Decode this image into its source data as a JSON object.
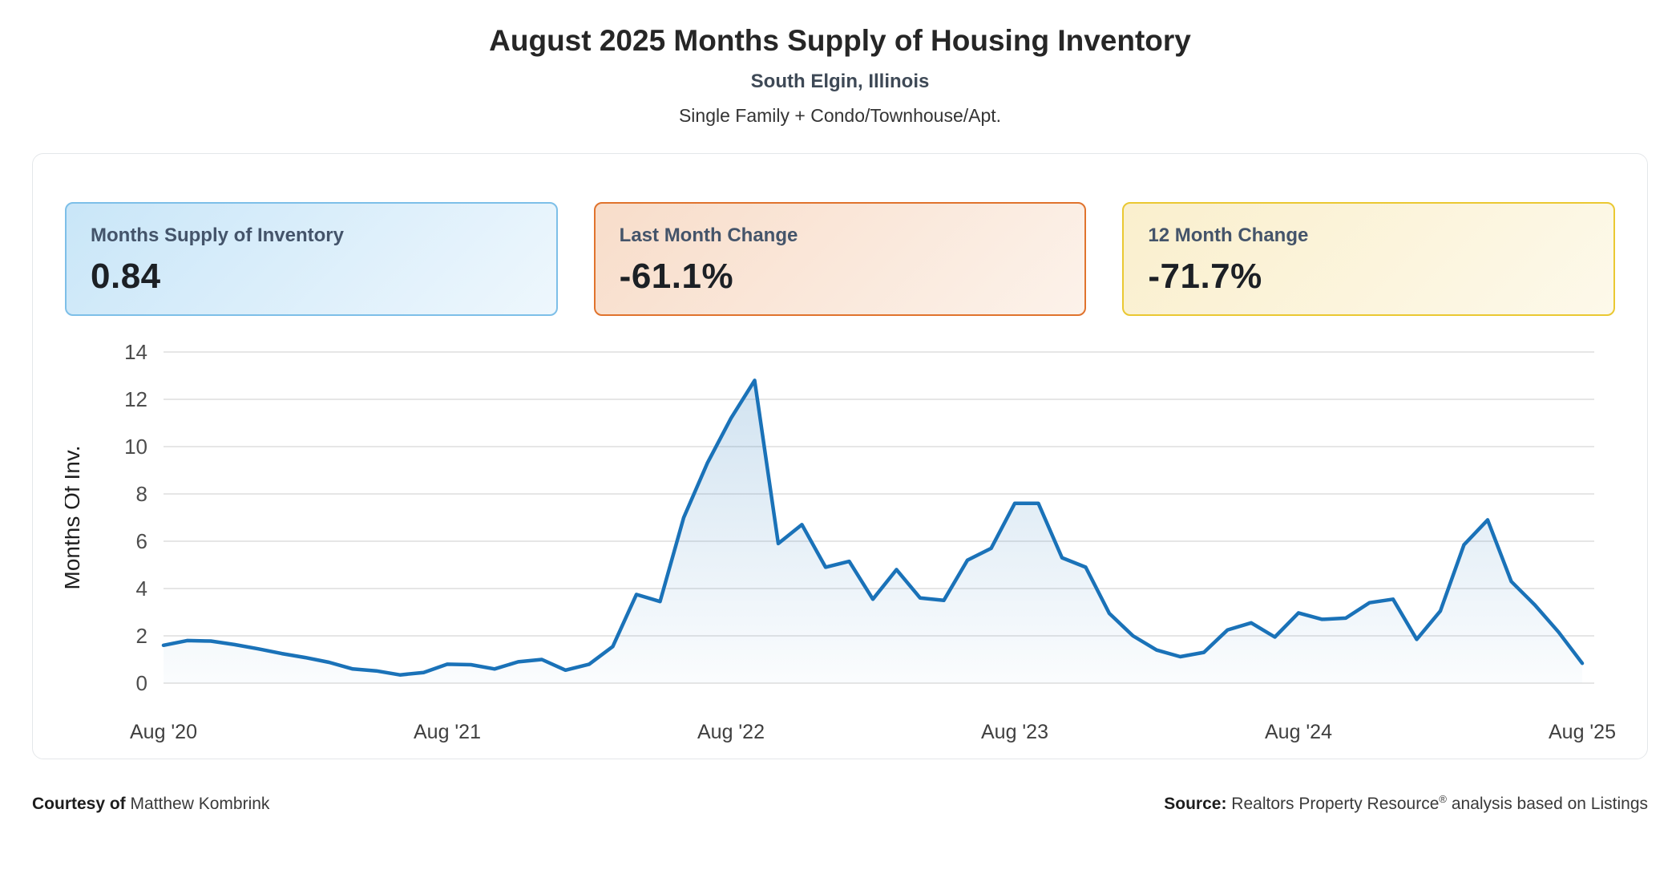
{
  "header": {
    "title": "August 2025 Months Supply of Housing Inventory",
    "subtitle": "South Elgin, Illinois",
    "property_types": "Single Family + Condo/Townhouse/Apt."
  },
  "stats": [
    {
      "label": "Months Supply of Inventory",
      "value": "0.84",
      "border_color": "#7dbfe8",
      "bg_from": "#c9e6f8",
      "bg_to": "#eef7fd"
    },
    {
      "label": "Last Month Change",
      "value": "-61.1%",
      "border_color": "#e0732d",
      "bg_from": "#f8ddca",
      "bg_to": "#fcf2ea"
    },
    {
      "label": "12 Month Change",
      "value": "-71.7%",
      "border_color": "#eac832",
      "bg_from": "#faefcd",
      "bg_to": "#fdf9ea"
    }
  ],
  "chart_data": {
    "type": "area",
    "title": "Months supply of housing inventory by month",
    "xlabel": "",
    "ylabel": "Months Of Inv.",
    "ylim": [
      0,
      14
    ],
    "yticks": [
      0,
      2,
      4,
      6,
      8,
      10,
      12,
      14
    ],
    "xtick_labels": [
      "Aug '20",
      "Aug '21",
      "Aug '22",
      "Aug '23",
      "Aug '24",
      "Aug '25"
    ],
    "xtick_month_index": [
      0,
      12,
      24,
      36,
      48,
      60
    ],
    "grid": "horizontal only",
    "legend": "none",
    "line_color": "#1a72b8",
    "area_fill_top": "rgba(26,114,184,0.20)",
    "area_fill_bottom": "rgba(26,114,184,0.02)",
    "grid_color": "#e6e6e6",
    "months": [
      "Aug '20",
      "Sep '20",
      "Oct '20",
      "Nov '20",
      "Dec '20",
      "Jan '21",
      "Feb '21",
      "Mar '21",
      "Apr '21",
      "May '21",
      "Jun '21",
      "Jul '21",
      "Aug '21",
      "Sep '21",
      "Oct '21",
      "Nov '21",
      "Dec '21",
      "Jan '22",
      "Feb '22",
      "Mar '22",
      "Apr '22",
      "May '22",
      "Jun '22",
      "Jul '22",
      "Aug '22",
      "Sep '22",
      "Oct '22",
      "Nov '22",
      "Dec '22",
      "Jan '23",
      "Feb '23",
      "Mar '23",
      "Apr '23",
      "May '23",
      "Jun '23",
      "Jul '23",
      "Aug '23",
      "Sep '23",
      "Oct '23",
      "Nov '23",
      "Dec '23",
      "Jan '24",
      "Feb '24",
      "Mar '24",
      "Apr '24",
      "May '24",
      "Jun '24",
      "Jul '24",
      "Aug '24",
      "Sep '24",
      "Oct '24",
      "Nov '24",
      "Dec '24",
      "Jan '25",
      "Feb '25",
      "Mar '25",
      "Apr '25",
      "May '25",
      "Jun '25",
      "Jul '25",
      "Aug '25"
    ],
    "values": [
      1.6,
      1.8,
      1.78,
      1.63,
      1.45,
      1.25,
      1.08,
      0.88,
      0.6,
      0.52,
      0.35,
      0.45,
      0.8,
      0.78,
      0.6,
      0.9,
      1.0,
      0.55,
      0.8,
      1.55,
      3.75,
      3.45,
      7.0,
      9.3,
      11.2,
      12.8,
      5.9,
      6.7,
      4.9,
      5.15,
      3.55,
      4.8,
      3.6,
      3.5,
      5.2,
      5.7,
      7.6,
      7.6,
      5.3,
      4.9,
      2.95,
      2.0,
      1.4,
      1.12,
      1.3,
      2.25,
      2.55,
      1.95,
      2.97,
      2.7,
      2.75,
      3.4,
      3.55,
      1.85,
      3.05,
      5.85,
      6.9,
      4.3,
      3.3,
      2.16,
      0.84
    ]
  },
  "footer": {
    "courtesy_label": "Courtesy of",
    "courtesy_name": "Matthew Kombrink",
    "source_label": "Source:",
    "source_name": "Realtors Property Resource",
    "source_reg": "®",
    "source_rest": "analysis based on Listings"
  }
}
